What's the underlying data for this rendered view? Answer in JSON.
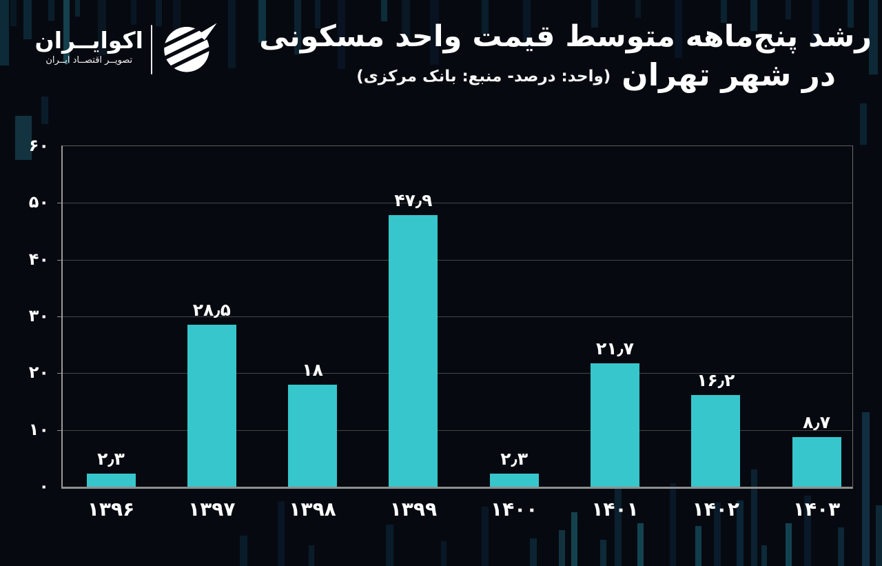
{
  "brand": {
    "name": "اکوایــران",
    "tagline": "تصویــر اقتصــاد ایــران"
  },
  "header": {
    "title_line1": "رشد پنج‌ماهه متوسط قیمت واحد مسکونی",
    "title_line2": "در شهر تهران",
    "note": "(واحد: درصد- منبع: بانک مرکزی)"
  },
  "chart_data": {
    "type": "bar",
    "title": "رشد پنج‌ماهه متوسط قیمت واحد مسکونی در شهر تهران",
    "subtitle": "(واحد: درصد- منبع: بانک مرکزی)",
    "unit": "درصد",
    "source": "بانک مرکزی",
    "categories": [
      "1396",
      "1397",
      "1398",
      "1399",
      "1400",
      "1401",
      "1402",
      "1403"
    ],
    "categories_fa": [
      "۱۳۹۶",
      "۱۳۹۷",
      "۱۳۹۸",
      "۱۳۹۹",
      "۱۴۰۰",
      "۱۴۰۱",
      "۱۴۰۲",
      "۱۴۰۳"
    ],
    "values": [
      2.3,
      28.5,
      18,
      47.9,
      2.3,
      21.7,
      16.2,
      8.7
    ],
    "value_labels_fa": [
      "۲٫۳",
      "۲۸٫۵",
      "۱۸",
      "۴۷٫۹",
      "۲٫۳",
      "۲۱٫۷",
      "۱۶٫۲",
      "۸٫۷"
    ],
    "xlabel": "",
    "ylabel": "",
    "ylim": [
      0,
      60
    ],
    "ytick_step": 10,
    "yticks_fa": [
      "۰",
      "۱۰",
      "۲۰",
      "۳۰",
      "۴۰",
      "۵۰",
      "۶۰"
    ],
    "grid": "horizontal",
    "legend": "none",
    "bar_color": "#37c6cc",
    "background_color": "#060a10",
    "text_color": "#ffffff"
  }
}
